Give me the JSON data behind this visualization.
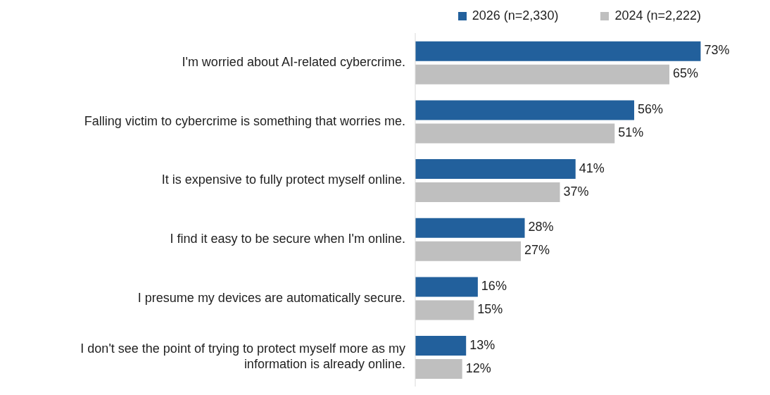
{
  "chart_data": {
    "type": "bar",
    "orientation": "horizontal",
    "categories": [
      "I'm worried about AI-related cybercrime.",
      "Falling victim to cybercrime is something that worries me.",
      "It is expensive to fully protect myself online.",
      "I find it easy to be secure when I'm online.",
      "I presume my devices are automatically secure.",
      "I don't see the point of trying to protect myself more as my information is already online."
    ],
    "series": [
      {
        "name": "2026 (n=2,330)",
        "color": "#22609c",
        "values": [
          73,
          56,
          41,
          28,
          16,
          13
        ],
        "value_labels": [
          "73%",
          "56%",
          "41%",
          "28%",
          "16%",
          "13%"
        ]
      },
      {
        "name": "2024 (n=2,222)",
        "color": "#bfbfbf",
        "values": [
          65,
          51,
          37,
          27,
          15,
          12
        ],
        "value_labels": [
          "65%",
          "51%",
          "37%",
          "27%",
          "15%",
          "12%"
        ]
      }
    ],
    "tick_labels": "y",
    "grid": false,
    "legend": "top right"
  }
}
